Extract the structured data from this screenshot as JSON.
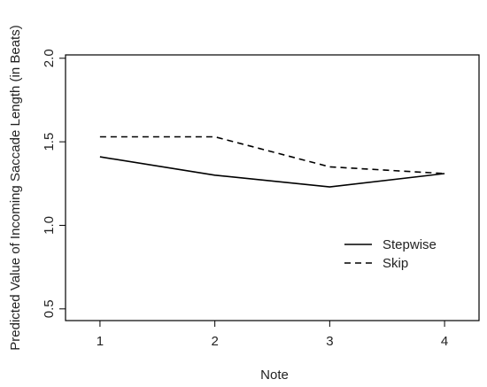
{
  "chart_data": {
    "type": "line",
    "title": "",
    "xlabel": "Note",
    "ylabel": "Predicted Value of Incoming Saccade Length (in Beats)",
    "x": [
      1,
      2,
      3,
      4
    ],
    "x_tick_labels": [
      "1",
      "2",
      "3",
      "4"
    ],
    "y_ticks": [
      0.5,
      1.0,
      1.5,
      2.0
    ],
    "y_tick_labels": [
      "0.5",
      "1.0",
      "1.5",
      "2.0"
    ],
    "xlim": [
      0.7,
      4.3
    ],
    "ylim": [
      0.43,
      2.02
    ],
    "grid": false,
    "legend_position": "right",
    "series": [
      {
        "name": "Stepwise",
        "values": [
          1.41,
          1.3,
          1.23,
          1.31
        ],
        "line_style": "solid",
        "color": "#000000"
      },
      {
        "name": "Skip",
        "values": [
          1.53,
          1.53,
          1.35,
          1.31
        ],
        "line_style": "dashed",
        "color": "#000000"
      }
    ]
  }
}
